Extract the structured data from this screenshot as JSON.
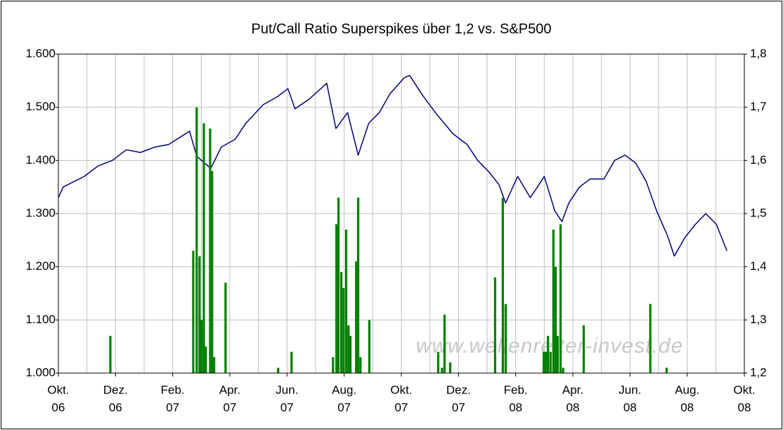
{
  "chart_data": {
    "type": "combo",
    "title": "Put/Call Ratio Superspikes über 1,2 vs. S&P500",
    "watermark": "www.wellenreiter-invest.de",
    "xlim": [
      0,
      24
    ],
    "xticks": [
      {
        "value": 0,
        "label": [
          "Okt.",
          "06"
        ]
      },
      {
        "value": 2,
        "label": [
          "Dez.",
          "06"
        ]
      },
      {
        "value": 4,
        "label": [
          "Feb.",
          "07"
        ]
      },
      {
        "value": 6,
        "label": [
          "Apr.",
          "07"
        ]
      },
      {
        "value": 8,
        "label": [
          "Jun.",
          "07"
        ]
      },
      {
        "value": 10,
        "label": [
          "Aug.",
          "07"
        ]
      },
      {
        "value": 12,
        "label": [
          "Okt.",
          "07"
        ]
      },
      {
        "value": 14,
        "label": [
          "Dez.",
          "07"
        ]
      },
      {
        "value": 16,
        "label": [
          "Feb.",
          "08"
        ]
      },
      {
        "value": 18,
        "label": [
          "Apr.",
          "08"
        ]
      },
      {
        "value": 20,
        "label": [
          "Jun.",
          "08"
        ]
      },
      {
        "value": 22,
        "label": [
          "Aug.",
          "08"
        ]
      },
      {
        "value": 24,
        "label": [
          "Okt.",
          "08"
        ]
      }
    ],
    "xgrid": [
      1,
      3,
      5,
      7,
      9,
      11,
      13,
      15,
      17,
      19,
      21,
      23
    ],
    "ylim": [
      1000,
      1600
    ],
    "yticks": [
      {
        "value": 1000,
        "label": "1.000"
      },
      {
        "value": 1100,
        "label": "1.100"
      },
      {
        "value": 1200,
        "label": "1.200"
      },
      {
        "value": 1300,
        "label": "1.300"
      },
      {
        "value": 1400,
        "label": "1.400"
      },
      {
        "value": 1500,
        "label": "1.500"
      },
      {
        "value": 1600,
        "label": "1.600"
      }
    ],
    "y2lim": [
      1.2,
      1.8
    ],
    "y2ticks": [
      {
        "value": 1.2,
        "label": "1,2"
      },
      {
        "value": 1.3,
        "label": "1,3"
      },
      {
        "value": 1.4,
        "label": "1,4"
      },
      {
        "value": 1.5,
        "label": "1,5"
      },
      {
        "value": 1.6,
        "label": "1,6"
      },
      {
        "value": 1.7,
        "label": "1,7"
      },
      {
        "value": 1.8,
        "label": "1,8"
      }
    ],
    "grid": true,
    "series": [
      {
        "type": "line",
        "color": "#000080",
        "x": [
          0,
          0.17,
          0.91,
          1.4,
          1.89,
          2.38,
          2.87,
          3.37,
          3.86,
          4.59,
          4.84,
          5.33,
          5.7,
          6.19,
          6.56,
          7.17,
          7.67,
          8.03,
          8.28,
          8.77,
          9.39,
          9.71,
          10.12,
          10.49,
          10.86,
          11.23,
          11.6,
          12.09,
          12.29,
          12.71,
          13.19,
          13.81,
          14.3,
          14.67,
          15.04,
          15.41,
          15.65,
          16.07,
          16.51,
          16.76,
          17.0,
          17.37,
          17.62,
          17.86,
          18.23,
          18.6,
          19.09,
          19.46,
          19.83,
          20.2,
          20.57,
          20.93,
          21.3,
          21.55,
          21.92,
          22.29,
          22.65,
          23.02,
          23.39
        ],
        "values": [
          1330,
          1350,
          1370,
          1390,
          1400,
          1420,
          1415,
          1425,
          1430,
          1455,
          1408,
          1385,
          1425,
          1440,
          1470,
          1505,
          1520,
          1535,
          1497,
          1515,
          1545,
          1460,
          1490,
          1410,
          1470,
          1490,
          1525,
          1555,
          1560,
          1525,
          1490,
          1450,
          1430,
          1400,
          1380,
          1355,
          1320,
          1370,
          1330,
          1350,
          1370,
          1305,
          1285,
          1320,
          1350,
          1365,
          1365,
          1400,
          1410,
          1395,
          1360,
          1305,
          1260,
          1220,
          1255,
          1280,
          1300,
          1280,
          1230
        ]
      },
      {
        "type": "bar",
        "axis": "y2",
        "color": "#008000",
        "x": [
          1.82,
          4.72,
          4.84,
          4.94,
          5.01,
          5.09,
          5.16,
          5.31,
          5.38,
          5.45,
          5.85,
          7.69,
          8.16,
          9.61,
          9.73,
          9.8,
          9.9,
          9.98,
          10.07,
          10.15,
          10.22,
          10.42,
          10.49,
          10.57,
          10.88,
          13.29,
          13.42,
          13.51,
          13.71,
          15.28,
          15.55,
          15.65,
          16.98,
          17.05,
          17.13,
          17.22,
          17.32,
          17.4,
          17.47,
          17.57,
          17.66,
          18.38,
          20.71,
          21.28
        ],
        "values": [
          1.27,
          1.43,
          1.7,
          1.42,
          1.3,
          1.67,
          1.25,
          1.66,
          1.58,
          1.23,
          1.37,
          1.21,
          1.24,
          1.23,
          1.48,
          1.53,
          1.39,
          1.36,
          1.47,
          1.29,
          1.27,
          1.41,
          1.53,
          1.23,
          1.3,
          1.24,
          1.21,
          1.31,
          1.22,
          1.38,
          1.53,
          1.33,
          1.24,
          1.24,
          1.27,
          1.24,
          1.47,
          1.4,
          1.27,
          1.48,
          1.21,
          1.29,
          1.33,
          1.21
        ]
      }
    ]
  }
}
